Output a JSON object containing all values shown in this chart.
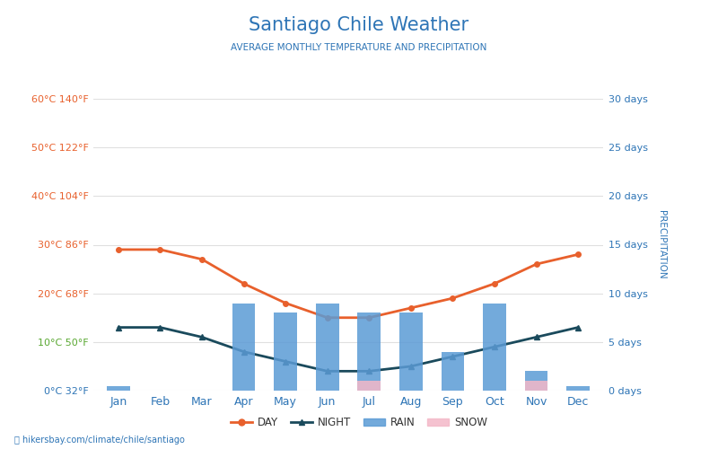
{
  "title": "Santiago Chile Weather",
  "subtitle": "AVERAGE MONTHLY TEMPERATURE AND PRECIPITATION",
  "months": [
    "Jan",
    "Feb",
    "Mar",
    "Apr",
    "May",
    "Jun",
    "Jul",
    "Aug",
    "Sep",
    "Oct",
    "Nov",
    "Dec"
  ],
  "day_temp": [
    29,
    29,
    27,
    22,
    18,
    15,
    15,
    17,
    19,
    22,
    26,
    28
  ],
  "night_temp": [
    13,
    13,
    11,
    8,
    6,
    4,
    4,
    5,
    7,
    9,
    11,
    13
  ],
  "rain_days": [
    0.5,
    0,
    0,
    9,
    8,
    9,
    8,
    8,
    4,
    9,
    2,
    0.5
  ],
  "snow_days": [
    0,
    0,
    0,
    0,
    0,
    0,
    1,
    0,
    0,
    0,
    1,
    0
  ],
  "temp_min": 0,
  "temp_max": 60,
  "precip_min": 0,
  "precip_max": 30,
  "day_color": "#e8602c",
  "night_color": "#1a4a5c",
  "rain_color": "#5b9bd5",
  "snow_color": "#f4b8c8",
  "title_color": "#2e75b6",
  "subtitle_color": "#2e75b6",
  "temp_label_colors": [
    "#2e75b6",
    "#5aa832",
    "#e8602c",
    "#e8602c",
    "#e8602c",
    "#e8602c",
    "#e8602c"
  ],
  "right_label_color": "#2e75b6",
  "axis_temp_label_color": "#999999",
  "axis_precip_label_color": "#2e75b6",
  "temp_ticks": [
    0,
    10,
    20,
    30,
    40,
    50,
    60
  ],
  "temp_tick_labels_c": [
    "0°C",
    "10°C",
    "20°C",
    "30°C",
    "40°C",
    "50°C",
    "60°C"
  ],
  "temp_tick_labels_f": [
    "32°F",
    "50°F",
    "68°F",
    "86°F",
    "104°F",
    "122°F",
    "140°F"
  ],
  "precip_ticks": [
    0,
    5,
    10,
    15,
    20,
    25,
    30
  ],
  "precip_tick_labels": [
    "0 days",
    "5 days",
    "10 days",
    "15 days",
    "20 days",
    "25 days",
    "30 days"
  ],
  "watermark": "hikersbay.com/climate/chile/santiago",
  "background_color": "#ffffff",
  "grid_color": "#e0e0e0"
}
